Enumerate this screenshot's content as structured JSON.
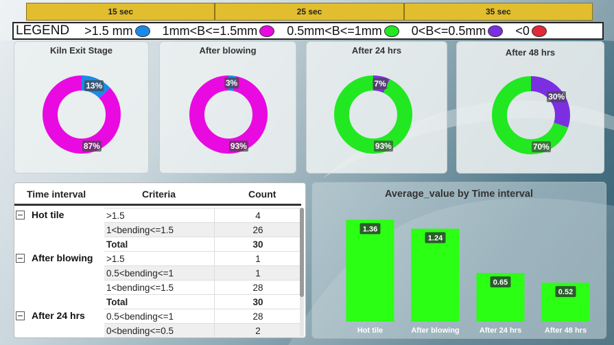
{
  "time_segments": [
    "15 sec",
    "25 sec",
    "35 sec"
  ],
  "legend": {
    "title": "LEGEND",
    "items": [
      {
        "label": ">1.5 mm",
        "color": "#1a8ae8"
      },
      {
        "label": "1mm<B<=1.5mm",
        "color": "#e80ae0"
      },
      {
        "label": "0.5mm<B<=1mm",
        "color": "#22e822"
      },
      {
        "label": "0<B<=0.5mm",
        "color": "#7b2fe0"
      },
      {
        "label": "<0",
        "color": "#e02a3a"
      }
    ]
  },
  "donuts": [
    {
      "title": "Kiln Exit Stage",
      "slices": [
        {
          "label": "13%",
          "value": 13,
          "color": "#1a8ae8"
        },
        {
          "label": "87%",
          "value": 87,
          "color": "#e80ae0"
        }
      ]
    },
    {
      "title": "After blowing",
      "slices": [
        {
          "label": "3%",
          "value": 3,
          "color": "#1a8ae8"
        },
        {
          "label": "93%",
          "value": 93,
          "color": "#e80ae0"
        }
      ]
    },
    {
      "title": "After 24 hrs",
      "slices": [
        {
          "label": "7%",
          "value": 7,
          "color": "#7b2fe0"
        },
        {
          "label": "93%",
          "value": 93,
          "color": "#22e822"
        }
      ]
    },
    {
      "title": "After 48 hrs",
      "slices": [
        {
          "label": "30%",
          "value": 30,
          "color": "#7b2fe0"
        },
        {
          "label": "70%",
          "value": 70,
          "color": "#22e822"
        }
      ]
    }
  ],
  "table": {
    "headers": [
      "Time interval",
      "Criteria",
      "Count"
    ],
    "groups": [
      {
        "name": "Hot tile",
        "rows": [
          {
            "criteria": ">1.5",
            "count": "4"
          },
          {
            "criteria": "1<bending<=1.5",
            "count": "26"
          },
          {
            "criteria": "Total",
            "count": "30",
            "total": true
          }
        ]
      },
      {
        "name": "After blowing",
        "rows": [
          {
            "criteria": ">1.5",
            "count": "1"
          },
          {
            "criteria": "0.5<bending<=1",
            "count": "1"
          },
          {
            "criteria": "1<bending<=1.5",
            "count": "28"
          },
          {
            "criteria": "Total",
            "count": "30",
            "total": true
          }
        ]
      },
      {
        "name": "After 24 hrs",
        "rows": [
          {
            "criteria": "0.5<bending<=1",
            "count": "28"
          },
          {
            "criteria": "0<bending<=0.5",
            "count": "2"
          }
        ]
      }
    ]
  },
  "chart_data": {
    "type": "bar",
    "title": "Average_value by Time interval",
    "categories": [
      "Hot tile",
      "After blowing",
      "After 24 hrs",
      "After 48 hrs"
    ],
    "values": [
      1.36,
      1.24,
      0.65,
      0.52
    ],
    "data_labels": [
      "1.36",
      "1.24",
      "0.65",
      "0.52"
    ],
    "bar_color": "#2bff14",
    "xlabel": "",
    "ylabel": "",
    "grid": false
  }
}
